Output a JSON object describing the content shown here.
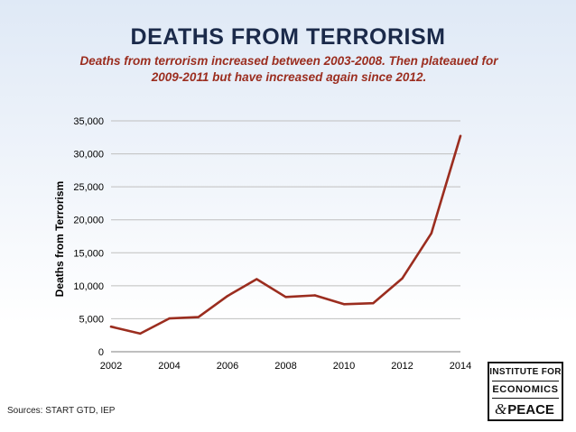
{
  "header": {
    "title": "DEATHS FROM TERRORISM",
    "subtitle_line1": "Deaths from terrorism increased between 2003-2008. Then plateaued for",
    "subtitle_line2": "2009-2011 but have increased again since 2012."
  },
  "footer": {
    "source": "Sources: START GTD, IEP"
  },
  "logo": {
    "line1": "INSTITUTE FOR",
    "line2": "ECONOMICS",
    "amp": "&",
    "line3": "PEACE"
  },
  "colors": {
    "line": "#9b2d1f",
    "title": "#1b2a4a",
    "subtitle": "#9b2d1f",
    "grid": "#bfbfbf"
  },
  "chart_data": {
    "type": "line",
    "title": "DEATHS FROM TERRORISM",
    "xlabel": "",
    "ylabel": "Deaths from Terrorism",
    "x": [
      2002,
      2003,
      2004,
      2005,
      2006,
      2007,
      2008,
      2009,
      2010,
      2011,
      2012,
      2013,
      2014
    ],
    "series": [
      {
        "name": "Deaths from Terrorism",
        "values": [
          3800,
          2750,
          5050,
          5250,
          8450,
          11000,
          8300,
          8550,
          7200,
          7350,
          11100,
          17950,
          32700
        ]
      }
    ],
    "xlim": [
      2002,
      2014
    ],
    "ylim": [
      0,
      35000
    ],
    "xticks": [
      2002,
      2004,
      2006,
      2008,
      2010,
      2012,
      2014
    ],
    "xtick_labels": [
      "2002",
      "2004",
      "2006",
      "2008",
      "2010",
      "2012",
      "2014"
    ],
    "yticks": [
      0,
      5000,
      10000,
      15000,
      20000,
      25000,
      30000,
      35000
    ],
    "ytick_labels": [
      "0",
      "5,000",
      "10,000",
      "15,000",
      "20,000",
      "25,000",
      "30,000",
      "35,000"
    ],
    "grid": true,
    "legend": "none"
  }
}
